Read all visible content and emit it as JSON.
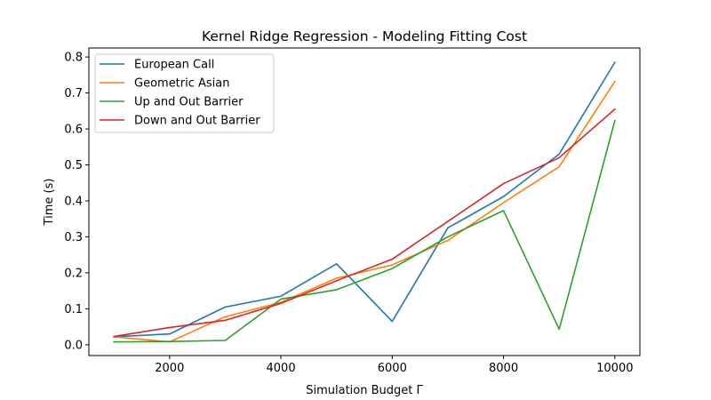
{
  "chart_data": {
    "type": "line",
    "title": "Kernel Ridge Regression - Modeling Fitting Cost",
    "xlabel": "Simulation Budget Γ",
    "ylabel": "Time (s)",
    "x": [
      1000,
      2000,
      3000,
      4000,
      5000,
      6000,
      7000,
      8000,
      9000,
      10000
    ],
    "xlim": [
      550,
      10450
    ],
    "ylim": [
      -0.03,
      0.825
    ],
    "xticks": [
      2000,
      4000,
      6000,
      8000,
      10000
    ],
    "yticks": [
      0.0,
      0.1,
      0.2,
      0.3,
      0.4,
      0.5,
      0.6,
      0.7,
      0.8
    ],
    "xtick_labels": [
      "2000",
      "4000",
      "6000",
      "8000",
      "10000"
    ],
    "ytick_labels": [
      "0.0",
      "0.1",
      "0.2",
      "0.3",
      "0.4",
      "0.5",
      "0.6",
      "0.7",
      "0.8"
    ],
    "grid": false,
    "legend_position": "upper-left",
    "series": [
      {
        "name": "European Call",
        "color": "#1f77b4",
        "values": [
          0.022,
          0.03,
          0.105,
          0.135,
          0.225,
          0.065,
          0.325,
          0.412,
          0.53,
          0.785
        ]
      },
      {
        "name": "Geometric Asian",
        "color": "#ff7f0e",
        "values": [
          0.022,
          0.008,
          0.078,
          0.118,
          0.185,
          0.222,
          0.29,
          0.395,
          0.495,
          0.732
        ]
      },
      {
        "name": "Up and Out Barrier",
        "color": "#2ca02c",
        "values": [
          0.008,
          0.009,
          0.012,
          0.127,
          0.153,
          0.212,
          0.3,
          0.373,
          0.043,
          0.623
        ]
      },
      {
        "name": "Down and Out Barrier",
        "color": "#d62728",
        "values": [
          0.023,
          0.048,
          0.068,
          0.115,
          0.178,
          0.238,
          0.343,
          0.448,
          0.52,
          0.655
        ]
      }
    ]
  }
}
